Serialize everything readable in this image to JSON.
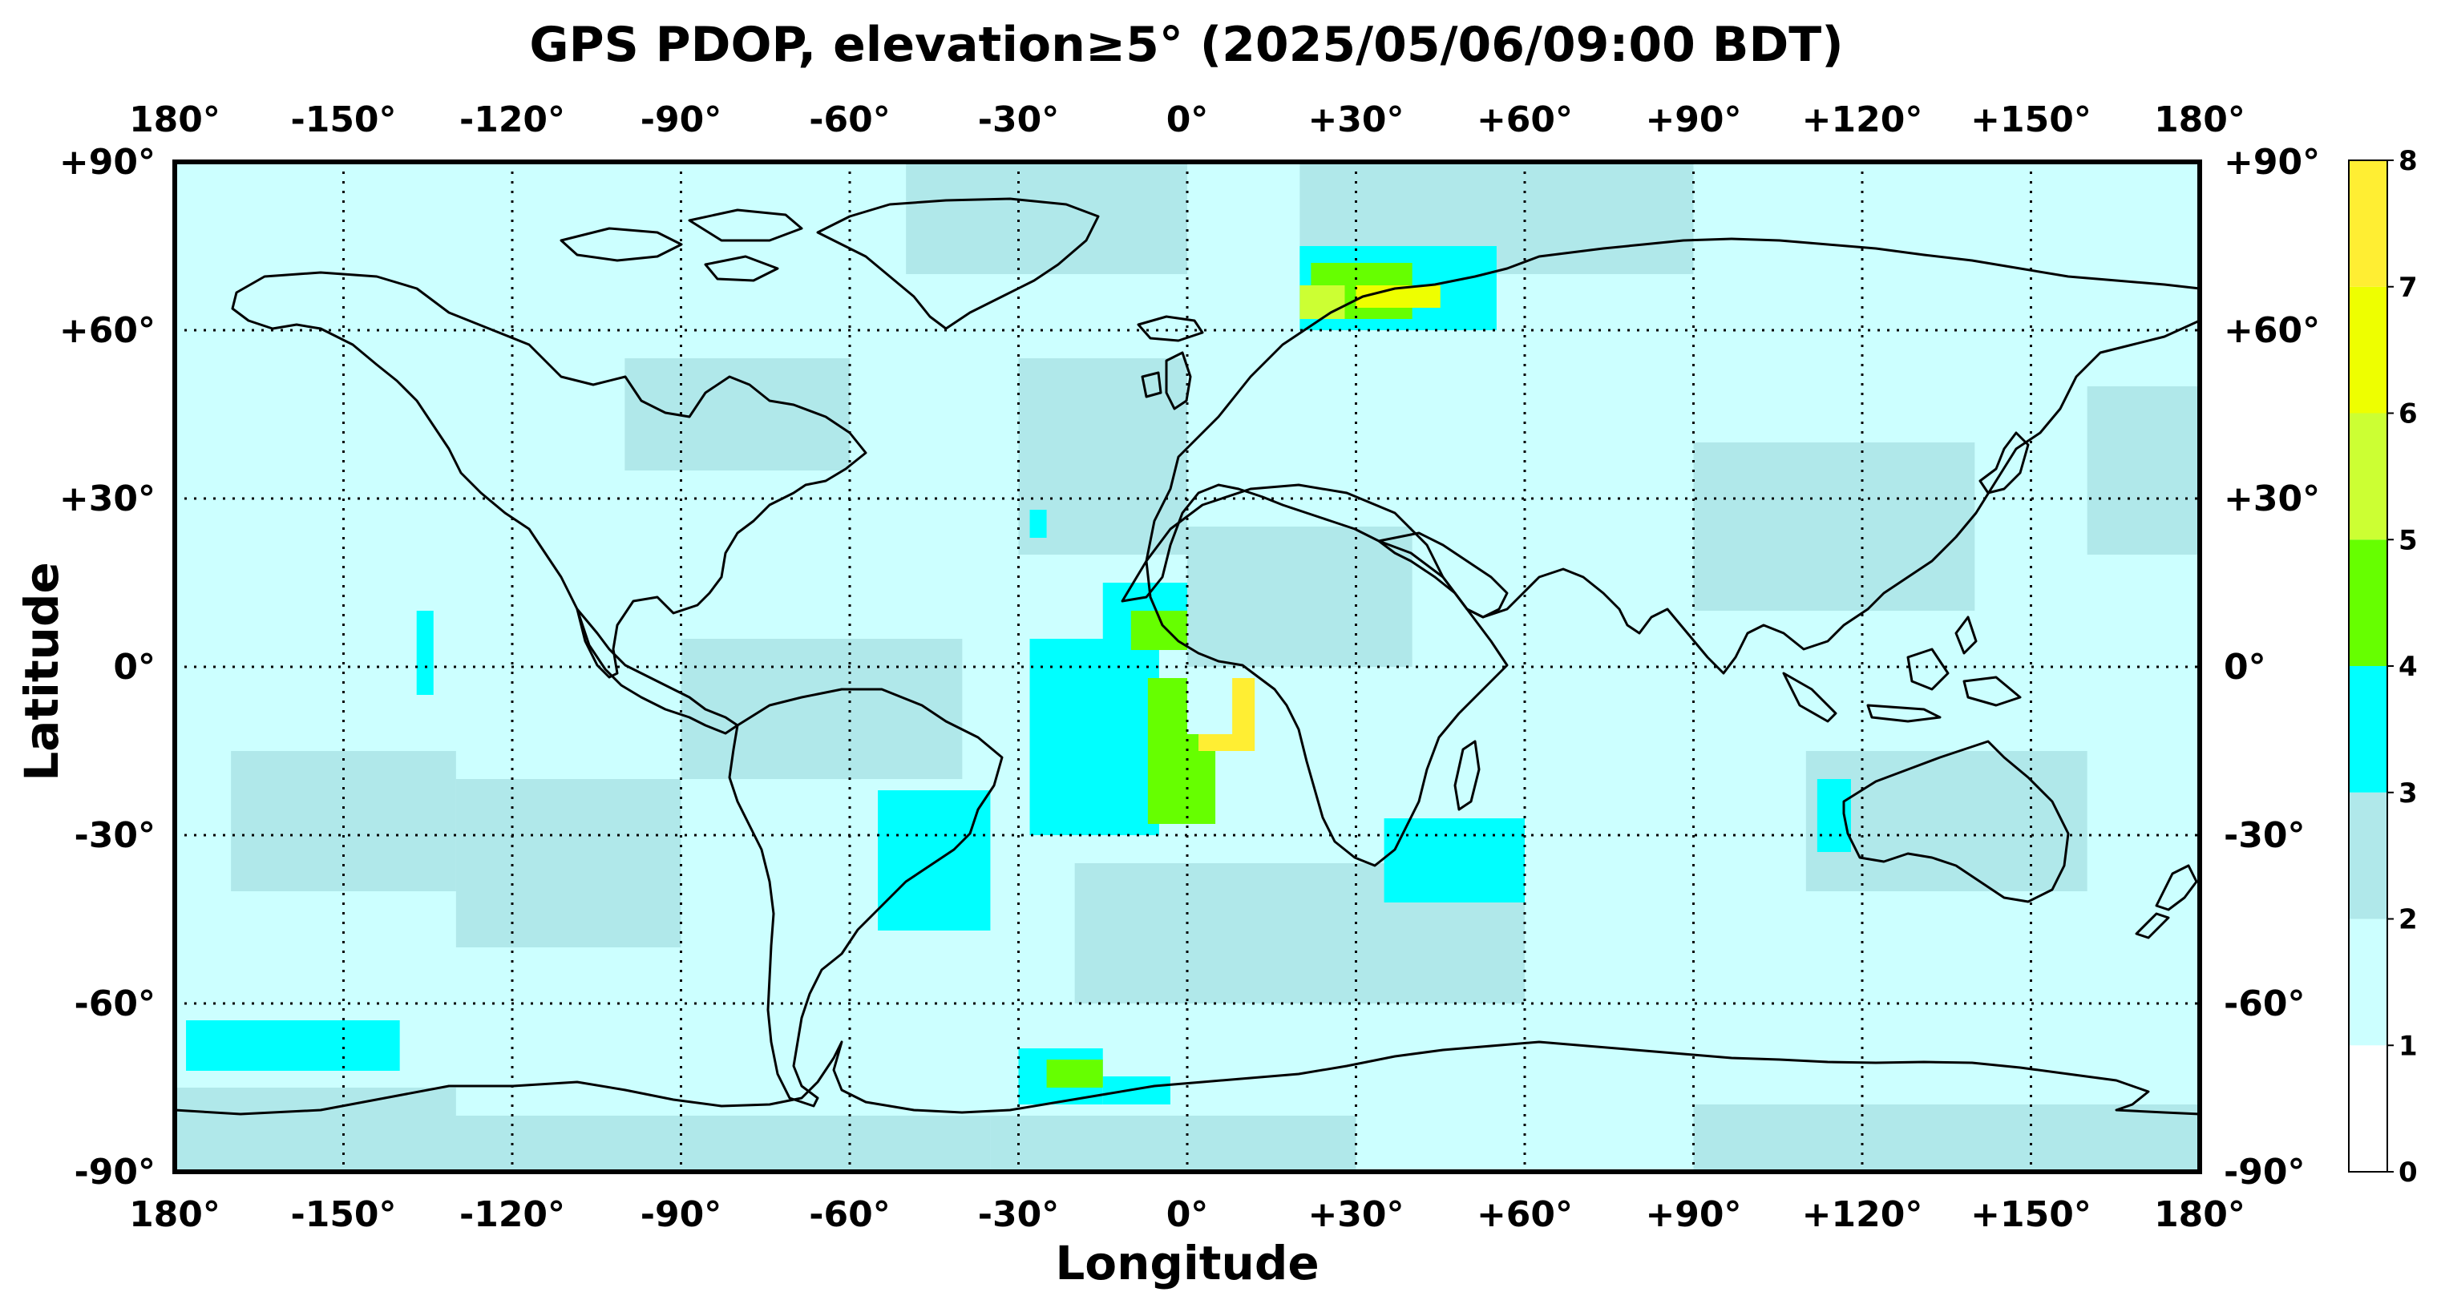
{
  "title": "GPS PDOP, elevation≥5° (2025/05/06/09:00 BDT)",
  "xlabel": "Longitude",
  "ylabel": "Latitude",
  "lon_ticks": [
    {
      "value": -180,
      "label": "180°"
    },
    {
      "value": -150,
      "label": "-150°"
    },
    {
      "value": -120,
      "label": "-120°"
    },
    {
      "value": -90,
      "label": "-90°"
    },
    {
      "value": -60,
      "label": "-60°"
    },
    {
      "value": -30,
      "label": "-30°"
    },
    {
      "value": 0,
      "label": "0°"
    },
    {
      "value": 30,
      "label": "+30°"
    },
    {
      "value": 60,
      "label": "+60°"
    },
    {
      "value": 90,
      "label": "+90°"
    },
    {
      "value": 120,
      "label": "+120°"
    },
    {
      "value": 150,
      "label": "+150°"
    },
    {
      "value": 180,
      "label": "180°"
    }
  ],
  "lat_ticks": [
    {
      "value": 90,
      "label": "+90°"
    },
    {
      "value": 60,
      "label": "+60°"
    },
    {
      "value": 30,
      "label": "+30°"
    },
    {
      "value": 0,
      "label": "0°"
    },
    {
      "value": -30,
      "label": "-30°"
    },
    {
      "value": -60,
      "label": "-60°"
    },
    {
      "value": -90,
      "label": "-90°"
    }
  ],
  "colorbar": {
    "levels": [
      {
        "from": 0,
        "to": 1,
        "color": "#ffffff"
      },
      {
        "from": 1,
        "to": 2,
        "color": "#ccffff"
      },
      {
        "from": 2,
        "to": 3,
        "color": "#b0e8ea"
      },
      {
        "from": 3,
        "to": 4,
        "color": "#00ffff"
      },
      {
        "from": 4,
        "to": 5,
        "color": "#66ff00"
      },
      {
        "from": 5,
        "to": 6,
        "color": "#ccff33"
      },
      {
        "from": 6,
        "to": 7,
        "color": "#eeff00"
      },
      {
        "from": 7,
        "to": 8,
        "color": "#ffee33"
      }
    ],
    "tick_labels": [
      "0",
      "1",
      "2",
      "3",
      "4",
      "5",
      "6",
      "7",
      "8"
    ]
  },
  "chart_data": {
    "type": "heatmap",
    "title": "GPS PDOP, elevation≥5° (2025/05/06/09:00 BDT)",
    "xlabel": "Longitude",
    "ylabel": "Latitude",
    "xlim": [
      -180,
      180
    ],
    "ylim": [
      -90,
      90
    ],
    "background_pdop_level": 1,
    "grid": true,
    "regions": [
      {
        "pdop_level": 2,
        "lon": [
          -180,
          -130
        ],
        "lat": [
          -90,
          -75
        ]
      },
      {
        "pdop_level": 2,
        "lon": [
          -180,
          -35
        ],
        "lat": [
          -90,
          -80
        ]
      },
      {
        "pdop_level": 2,
        "lon": [
          -35,
          30
        ],
        "lat": [
          -90,
          -80
        ]
      },
      {
        "pdop_level": 2,
        "lon": [
          90,
          180
        ],
        "lat": [
          -90,
          -78
        ]
      },
      {
        "pdop_level": 2,
        "lon": [
          -50,
          0
        ],
        "lat": [
          70,
          90
        ]
      },
      {
        "pdop_level": 2,
        "lon": [
          20,
          90
        ],
        "lat": [
          70,
          90
        ]
      },
      {
        "pdop_level": 2,
        "lon": [
          -30,
          0
        ],
        "lat": [
          20,
          55
        ]
      },
      {
        "pdop_level": 2,
        "lon": [
          -100,
          -60
        ],
        "lat": [
          35,
          55
        ]
      },
      {
        "pdop_level": 2,
        "lon": [
          -170,
          -130
        ],
        "lat": [
          -40,
          -15
        ]
      },
      {
        "pdop_level": 2,
        "lon": [
          -130,
          -90
        ],
        "lat": [
          -50,
          -20
        ]
      },
      {
        "pdop_level": 2,
        "lon": [
          -90,
          -40
        ],
        "lat": [
          -20,
          5
        ]
      },
      {
        "pdop_level": 2,
        "lon": [
          -20,
          60
        ],
        "lat": [
          -60,
          -35
        ]
      },
      {
        "pdop_level": 2,
        "lon": [
          0,
          40
        ],
        "lat": [
          0,
          25
        ]
      },
      {
        "pdop_level": 2,
        "lon": [
          90,
          140
        ],
        "lat": [
          10,
          40
        ]
      },
      {
        "pdop_level": 2,
        "lon": [
          110,
          160
        ],
        "lat": [
          -40,
          -15
        ]
      },
      {
        "pdop_level": 2,
        "lon": [
          160,
          180
        ],
        "lat": [
          20,
          50
        ]
      },
      {
        "pdop_level": 3,
        "lon": [
          -28,
          -25
        ],
        "lat": [
          23,
          28
        ]
      },
      {
        "pdop_level": 3,
        "lon": [
          -15,
          0
        ],
        "lat": [
          5,
          15
        ]
      },
      {
        "pdop_level": 3,
        "lon": [
          -28,
          -5
        ],
        "lat": [
          -30,
          5
        ]
      },
      {
        "pdop_level": 3,
        "lon": [
          -55,
          -35
        ],
        "lat": [
          -47,
          -22
        ]
      },
      {
        "pdop_level": 3,
        "lon": [
          35,
          60
        ],
        "lat": [
          -42,
          -27
        ]
      },
      {
        "pdop_level": 3,
        "lon": [
          112,
          118
        ],
        "lat": [
          -33,
          -20
        ]
      },
      {
        "pdop_level": 3,
        "lon": [
          -178,
          -140
        ],
        "lat": [
          -72,
          -63
        ]
      },
      {
        "pdop_level": 3,
        "lon": [
          -30,
          -15
        ],
        "lat": [
          -78,
          -68
        ]
      },
      {
        "pdop_level": 3,
        "lon": [
          -15,
          -3
        ],
        "lat": [
          -78,
          -73
        ]
      },
      {
        "pdop_level": 3,
        "lon": [
          -137,
          -134
        ],
        "lat": [
          -5,
          10
        ]
      },
      {
        "pdop_level": 3,
        "lon": [
          20,
          55
        ],
        "lat": [
          60,
          75
        ]
      },
      {
        "pdop_level": 4,
        "lon": [
          -7,
          5
        ],
        "lat": [
          -28,
          -2
        ]
      },
      {
        "pdop_level": 4,
        "lon": [
          -10,
          0
        ],
        "lat": [
          3,
          10
        ]
      },
      {
        "pdop_level": 4,
        "lon": [
          22,
          40
        ],
        "lat": [
          62,
          72
        ]
      },
      {
        "pdop_level": 4,
        "lon": [
          -25,
          -15
        ],
        "lat": [
          -75,
          -70
        ]
      },
      {
        "pdop_level": 5,
        "lon": [
          20,
          28
        ],
        "lat": [
          62,
          68
        ]
      },
      {
        "pdop_level": 6,
        "lon": [
          30,
          45
        ],
        "lat": [
          64,
          68
        ]
      },
      {
        "pdop_level": 7,
        "lon": [
          2,
          12
        ],
        "lat": [
          -15,
          -2
        ]
      },
      {
        "pdop_level": 8,
        "lon": [
          0,
          8
        ],
        "lat": [
          -12,
          0
        ]
      }
    ]
  }
}
